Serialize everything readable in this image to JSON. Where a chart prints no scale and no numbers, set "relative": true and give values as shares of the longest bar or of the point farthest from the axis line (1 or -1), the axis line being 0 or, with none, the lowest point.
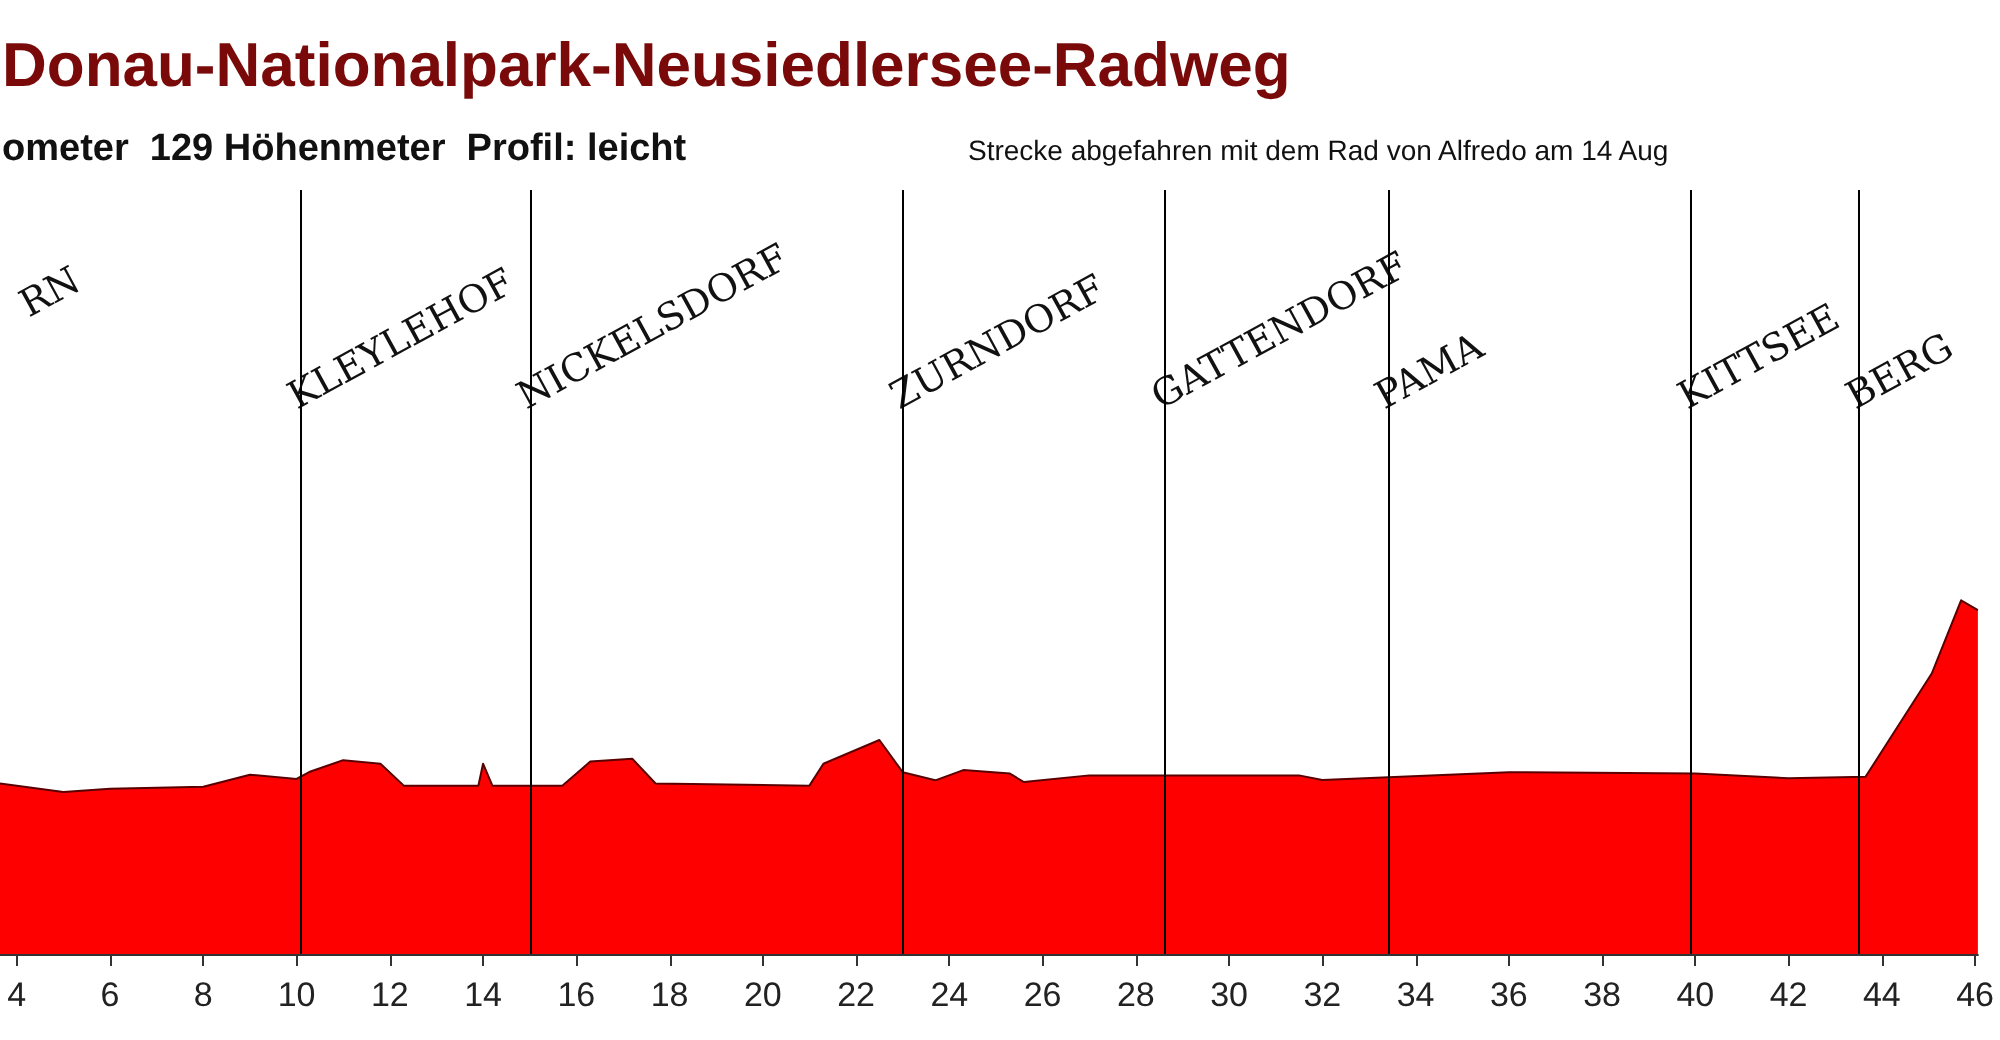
{
  "chart_data": {
    "type": "area",
    "title": "Donau-Nationalpark-Neusiedlersee-Radweg",
    "subtitle": "ometer  129 Höhenmeter  Profil: leicht",
    "annotations": [
      "Strecke abgefahren mit dem Rad von Alfredo am 14 Aug",
      "RN"
    ],
    "relative": true,
    "xlim": [
      3.64,
      46.06
    ],
    "xticks": [
      4,
      6,
      8,
      10,
      12,
      14,
      16,
      18,
      20,
      22,
      24,
      26,
      28,
      30,
      32,
      34,
      36,
      38,
      40,
      42,
      44,
      46
    ],
    "x": [
      3.64,
      5,
      6,
      8,
      9,
      10,
      10.3,
      11,
      11.8,
      12.3,
      13.9,
      14,
      14.2,
      15.7,
      16.3,
      17.2,
      17.7,
      21,
      21.3,
      22.5,
      23,
      23.7,
      24.3,
      25.3,
      25.6,
      27,
      31.5,
      32,
      36,
      40,
      42,
      43.65,
      44.2,
      45.07,
      45.7,
      46.06
    ],
    "series": [
      {
        "color": "#ff0000",
        "values": [
          0.482,
          0.458,
          0.467,
          0.473,
          0.507,
          0.495,
          0.516,
          0.548,
          0.538,
          0.476,
          0.476,
          0.538,
          0.476,
          0.476,
          0.544,
          0.552,
          0.482,
          0.476,
          0.538,
          0.605,
          0.514,
          0.491,
          0.52,
          0.51,
          0.486,
          0.505,
          0.505,
          0.492,
          0.514,
          0.51,
          0.497,
          0.501,
          0.614,
          0.793,
          1,
          0.972
        ]
      }
    ],
    "ref_lines": [
      {
        "axis": "x",
        "value": 10.08,
        "label": "KLEYLEHOF"
      },
      {
        "axis": "x",
        "value": 15.0,
        "label": "NICKELSDORF"
      },
      {
        "axis": "x",
        "value": 23.0,
        "label": "ZURNDORF"
      },
      {
        "axis": "x",
        "value": 28.6,
        "label": "GATTENDORF"
      },
      {
        "axis": "x",
        "value": 33.4,
        "label": "PAMA"
      },
      {
        "axis": "x",
        "value": 39.9,
        "label": "KITTSEE"
      },
      {
        "axis": "x",
        "value": 43.5,
        "label": "BERG"
      }
    ],
    "grid": false,
    "marker": "none"
  }
}
